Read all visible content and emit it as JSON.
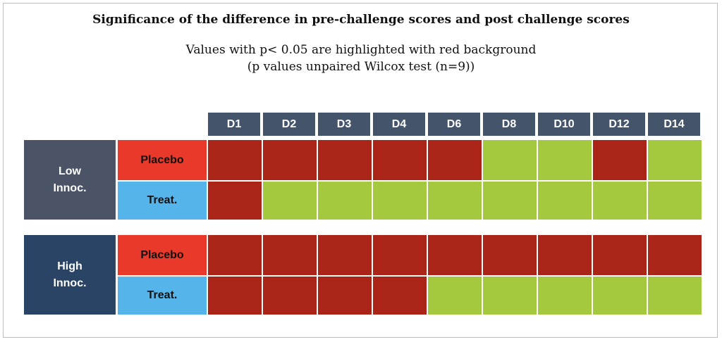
{
  "chart_data": {
    "type": "heatmap",
    "title": "Significance of the difference in pre-challenge scores and post challenge scores",
    "subtitle_lines": [
      "Values with p< 0.05 are highlighted with red background",
      "(p values unpaired Wilcox test (n=9))"
    ],
    "columns": [
      "D1",
      "D2",
      "D3",
      "D4",
      "D6",
      "D8",
      "D10",
      "D12",
      "D14"
    ],
    "groups": [
      {
        "name_lines": [
          "Low",
          "Innoc."
        ],
        "color": "#4a5466",
        "rows": [
          {
            "label": "Placebo",
            "label_color": "#e8392a",
            "significant": [
              true,
              true,
              true,
              true,
              true,
              false,
              false,
              true,
              false
            ]
          },
          {
            "label": "Treat.",
            "label_color": "#55b4ea",
            "significant": [
              true,
              false,
              false,
              false,
              false,
              false,
              false,
              false,
              false
            ]
          }
        ]
      },
      {
        "name_lines": [
          "High",
          "Innoc."
        ],
        "color": "#2a4466",
        "rows": [
          {
            "label": "Placebo",
            "label_color": "#e8392a",
            "significant": [
              true,
              true,
              true,
              true,
              true,
              true,
              true,
              true,
              true
            ]
          },
          {
            "label": "Treat.",
            "label_color": "#55b4ea",
            "significant": [
              true,
              true,
              true,
              true,
              false,
              false,
              false,
              false,
              false
            ]
          }
        ]
      }
    ],
    "legend": {
      "significant_color": "#ab2418",
      "not_significant_color": "#a4c93e"
    }
  }
}
